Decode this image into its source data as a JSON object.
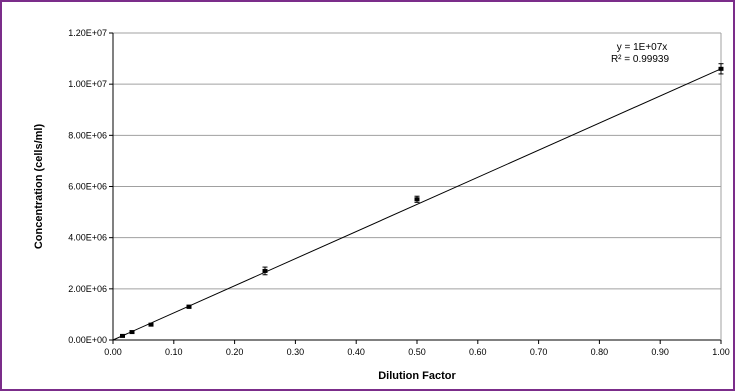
{
  "chart_data": {
    "type": "scatter",
    "xlabel": "Dilution Factor",
    "ylabel": "Concentration (cells/ml)",
    "xlim": [
      0,
      1
    ],
    "ylim": [
      0,
      12000000
    ],
    "x_ticks": [
      "0.00",
      "0.10",
      "0.20",
      "0.30",
      "0.40",
      "0.50",
      "0.60",
      "0.70",
      "0.80",
      "0.90",
      "1.00"
    ],
    "y_ticks": [
      "0.00E+00",
      "2.00E+06",
      "4.00E+06",
      "6.00E+06",
      "8.00E+06",
      "1.00E+07",
      "1.20E+07"
    ],
    "grid": "horizontal",
    "series": [
      {
        "x": [
          0.015625,
          0.03125,
          0.0625,
          0.125,
          0.25,
          0.5,
          1.0
        ],
        "y": [
          160000,
          310000,
          600000,
          1300000,
          2700000,
          5500000,
          10600000
        ],
        "error": [
          20000,
          30000,
          40000,
          60000,
          150000,
          120000,
          200000
        ]
      }
    ],
    "trendline": {
      "type": "linear",
      "slope": 10600000,
      "equation": "y = 1E+07x",
      "r_squared": "R² = 0.99939"
    },
    "colors": {
      "frame": "#7b2d8a",
      "grid": "#a0a0a0",
      "marker": "#000000"
    }
  }
}
